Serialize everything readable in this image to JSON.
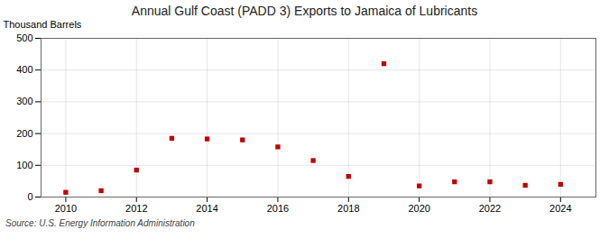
{
  "chart_data": {
    "type": "scatter",
    "title": "Annual Gulf Coast (PADD 3) Exports to Jamaica of Lubricants",
    "ylabel": "Thousand Barrels",
    "source": "Source: U.S. Energy Information Administration",
    "x": [
      2010,
      2011,
      2012,
      2013,
      2014,
      2015,
      2016,
      2017,
      2018,
      2019,
      2020,
      2021,
      2022,
      2023,
      2024
    ],
    "values": [
      15,
      20,
      85,
      185,
      183,
      180,
      158,
      115,
      65,
      420,
      35,
      48,
      48,
      37,
      40
    ],
    "color": "#c00000",
    "marker": "square",
    "xlim": [
      2009.3,
      2025.0
    ],
    "xticks": [
      2010,
      2012,
      2014,
      2016,
      2018,
      2020,
      2022,
      2024
    ],
    "ylim": [
      0,
      500
    ],
    "yticks": [
      0,
      100,
      200,
      300,
      400,
      500
    ],
    "grid": true
  }
}
